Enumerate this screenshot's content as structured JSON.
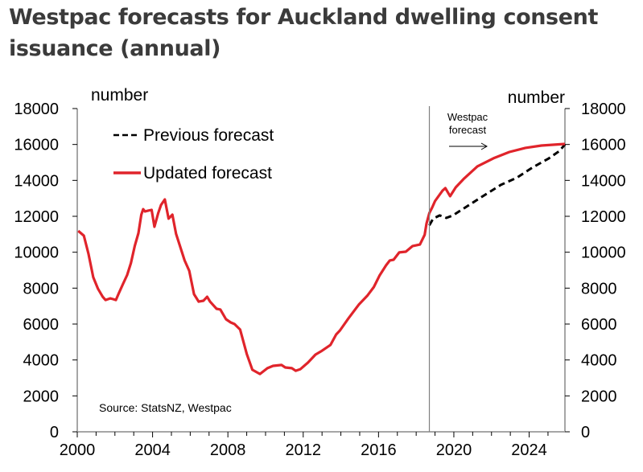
{
  "title": "Westpac forecasts for Auckland dwelling consent issuance (annual)",
  "chart_data": {
    "type": "line",
    "title": "Westpac forecasts for Auckland dwelling consent issuance (annual)",
    "xlabel": "",
    "ylabel_left": "number",
    "ylabel_right": "number",
    "xlim": [
      2000,
      2025.9
    ],
    "ylim": [
      0,
      18000
    ],
    "x_ticks": [
      2000,
      2004,
      2008,
      2012,
      2016,
      2020,
      2024
    ],
    "x_tick_labels": [
      "2000",
      "2004",
      "2008",
      "2012",
      "2016",
      "2020",
      "2024"
    ],
    "x_minor_tick_step": 1,
    "y_ticks": [
      0,
      2000,
      4000,
      6000,
      8000,
      10000,
      12000,
      14000,
      16000,
      18000
    ],
    "y_tick_labels": [
      "0",
      "2000",
      "4000",
      "6000",
      "8000",
      "10000",
      "12000",
      "14000",
      "16000",
      "18000"
    ],
    "grid": false,
    "legend_position": "top-left",
    "forecast_start": 2018.7,
    "annotations": {
      "forecast_text": [
        "Westpac",
        "forecast"
      ],
      "source": "Source: StatsNZ, Westpac"
    },
    "series": [
      {
        "name": "Previous forecast",
        "style": "dashed",
        "color": "#000000",
        "points": [
          [
            2018.7,
            11500
          ],
          [
            2018.9,
            11870
          ],
          [
            2019.25,
            12050
          ],
          [
            2019.6,
            11910
          ],
          [
            2019.95,
            12050
          ],
          [
            2020.6,
            12490
          ],
          [
            2021.6,
            13160
          ],
          [
            2022.5,
            13750
          ],
          [
            2023.35,
            14150
          ],
          [
            2024.2,
            14730
          ],
          [
            2025.05,
            15230
          ],
          [
            2025.6,
            15630
          ],
          [
            2025.9,
            16000
          ]
        ]
      },
      {
        "name": "Updated forecast",
        "style": "solid",
        "color": "#e0242b",
        "points": [
          [
            2000.05,
            11190
          ],
          [
            2000.35,
            10920
          ],
          [
            2000.6,
            9900
          ],
          [
            2000.85,
            8600
          ],
          [
            2001.1,
            7970
          ],
          [
            2001.35,
            7520
          ],
          [
            2001.5,
            7340
          ],
          [
            2001.75,
            7430
          ],
          [
            2001.9,
            7390
          ],
          [
            2002.05,
            7340
          ],
          [
            2002.2,
            7700
          ],
          [
            2002.45,
            8280
          ],
          [
            2002.65,
            8730
          ],
          [
            2002.85,
            9400
          ],
          [
            2003.05,
            10340
          ],
          [
            2003.25,
            11060
          ],
          [
            2003.4,
            12090
          ],
          [
            2003.5,
            12400
          ],
          [
            2003.6,
            12270
          ],
          [
            2003.75,
            12310
          ],
          [
            2003.95,
            12360
          ],
          [
            2004.1,
            11420
          ],
          [
            2004.3,
            12180
          ],
          [
            2004.45,
            12630
          ],
          [
            2004.65,
            12940
          ],
          [
            2004.85,
            11870
          ],
          [
            2005.05,
            12090
          ],
          [
            2005.25,
            11020
          ],
          [
            2005.7,
            9540
          ],
          [
            2005.95,
            8960
          ],
          [
            2006.2,
            7660
          ],
          [
            2006.45,
            7250
          ],
          [
            2006.7,
            7300
          ],
          [
            2006.9,
            7520
          ],
          [
            2007.05,
            7250
          ],
          [
            2007.4,
            6850
          ],
          [
            2007.6,
            6810
          ],
          [
            2007.9,
            6270
          ],
          [
            2008.15,
            6090
          ],
          [
            2008.35,
            6000
          ],
          [
            2008.65,
            5690
          ],
          [
            2009.0,
            4340
          ],
          [
            2009.3,
            3450
          ],
          [
            2009.7,
            3220
          ],
          [
            2010.1,
            3540
          ],
          [
            2010.4,
            3670
          ],
          [
            2010.85,
            3720
          ],
          [
            2011.05,
            3580
          ],
          [
            2011.4,
            3540
          ],
          [
            2011.6,
            3400
          ],
          [
            2011.85,
            3490
          ],
          [
            2012.25,
            3850
          ],
          [
            2012.65,
            4300
          ],
          [
            2012.95,
            4480
          ],
          [
            2013.45,
            4840
          ],
          [
            2013.75,
            5420
          ],
          [
            2013.95,
            5640
          ],
          [
            2014.4,
            6310
          ],
          [
            2014.95,
            7080
          ],
          [
            2015.4,
            7570
          ],
          [
            2015.75,
            8060
          ],
          [
            2016.05,
            8690
          ],
          [
            2016.4,
            9270
          ],
          [
            2016.6,
            9540
          ],
          [
            2016.8,
            9580
          ],
          [
            2017.1,
            9990
          ],
          [
            2017.45,
            10030
          ],
          [
            2017.8,
            10340
          ],
          [
            2018.2,
            10430
          ],
          [
            2018.45,
            10970
          ],
          [
            2018.55,
            11600
          ],
          [
            2018.7,
            12180
          ],
          [
            2018.85,
            12490
          ],
          [
            2019.0,
            12850
          ],
          [
            2019.4,
            13430
          ],
          [
            2019.55,
            13570
          ],
          [
            2019.8,
            13120
          ],
          [
            2020.1,
            13610
          ],
          [
            2020.55,
            14110
          ],
          [
            2021.25,
            14780
          ],
          [
            2022.1,
            15230
          ],
          [
            2022.95,
            15580
          ],
          [
            2023.8,
            15810
          ],
          [
            2024.65,
            15940
          ],
          [
            2025.9,
            16030
          ]
        ]
      }
    ]
  }
}
